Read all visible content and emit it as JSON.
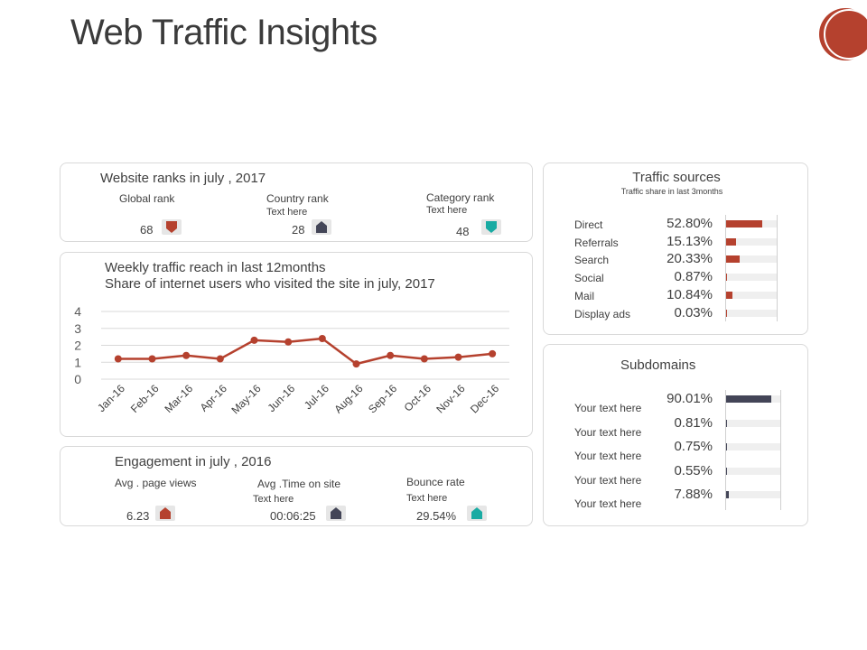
{
  "page": {
    "title": "Web Traffic Insights"
  },
  "colors": {
    "accent": "#b5412e",
    "dark": "#434557",
    "teal": "#19aba3",
    "track": "#efefef"
  },
  "ranks": {
    "title": "Website ranks in july , 2017",
    "items": [
      {
        "label": "Global rank",
        "sub": "",
        "value": "68",
        "icon": "arrow-down-icon",
        "color": "#b5412e"
      },
      {
        "label": "Country rank",
        "sub": "Text here",
        "value": "28",
        "icon": "arrow-up-icon",
        "color": "#434557"
      },
      {
        "label": "Category rank",
        "sub": "Text here",
        "value": "48",
        "icon": "arrow-down-icon",
        "color": "#19aba3"
      }
    ]
  },
  "weekly": {
    "title": "Weekly traffic reach in last 12months",
    "subtitle": "Share of internet users who visited the site in july, 2017"
  },
  "chart_data": {
    "type": "line",
    "categories": [
      "Jan-16",
      "Feb-16",
      "Mar-16",
      "Apr-16",
      "May-16",
      "Jun-16",
      "Jul-16",
      "Aug-16",
      "Sep-16",
      "Oct-16",
      "Nov-16",
      "Dec-16"
    ],
    "values": [
      1.2,
      1.2,
      1.4,
      1.2,
      2.3,
      2.2,
      2.4,
      0.9,
      1.4,
      1.2,
      1.3,
      1.5
    ],
    "ylim": [
      0,
      4
    ],
    "yticks": [
      "0",
      "1",
      "2",
      "3",
      "4"
    ],
    "grid": true,
    "color": "#b5412e"
  },
  "engagement": {
    "title": "Engagement in july , 2016",
    "items": [
      {
        "label": "Avg . page views",
        "sub": "",
        "value": "6.23",
        "icon": "arrow-up-icon",
        "color": "#b5412e"
      },
      {
        "label": "Avg .Time on site",
        "sub": "Text here",
        "value": "00:06:25",
        "icon": "arrow-up-icon",
        "color": "#434557"
      },
      {
        "label": "Bounce rate",
        "sub": "Text here",
        "value": "29.54%",
        "icon": "arrow-up-icon",
        "color": "#19aba3"
      }
    ]
  },
  "traffic": {
    "title": "Traffic sources",
    "subtitle": "Traffic share in last 3months",
    "items": [
      {
        "label": "Direct",
        "pct": "52.80%",
        "value": 52.8
      },
      {
        "label": "Referrals",
        "pct": "15.13%",
        "value": 15.13
      },
      {
        "label": "Search",
        "pct": "20.33%",
        "value": 20.33
      },
      {
        "label": "Social",
        "pct": "0.87%",
        "value": 0.87
      },
      {
        "label": "Mail",
        "pct": "10.84%",
        "value": 10.84
      },
      {
        "label": "Display ads",
        "pct": "0.03%",
        "value": 0.03
      }
    ]
  },
  "subdomains": {
    "title": "Subdomains",
    "items": [
      {
        "label": "Your text here",
        "pct": "90.01%",
        "value": 90.01
      },
      {
        "label": "Your text here",
        "pct": "0.81%",
        "value": 0.81
      },
      {
        "label": "Your text here",
        "pct": "0.75%",
        "value": 0.75
      },
      {
        "label": "Your text here",
        "pct": "0.55%",
        "value": 0.55
      },
      {
        "label": "Your text here",
        "pct": "7.88%",
        "value": 7.88
      }
    ]
  }
}
